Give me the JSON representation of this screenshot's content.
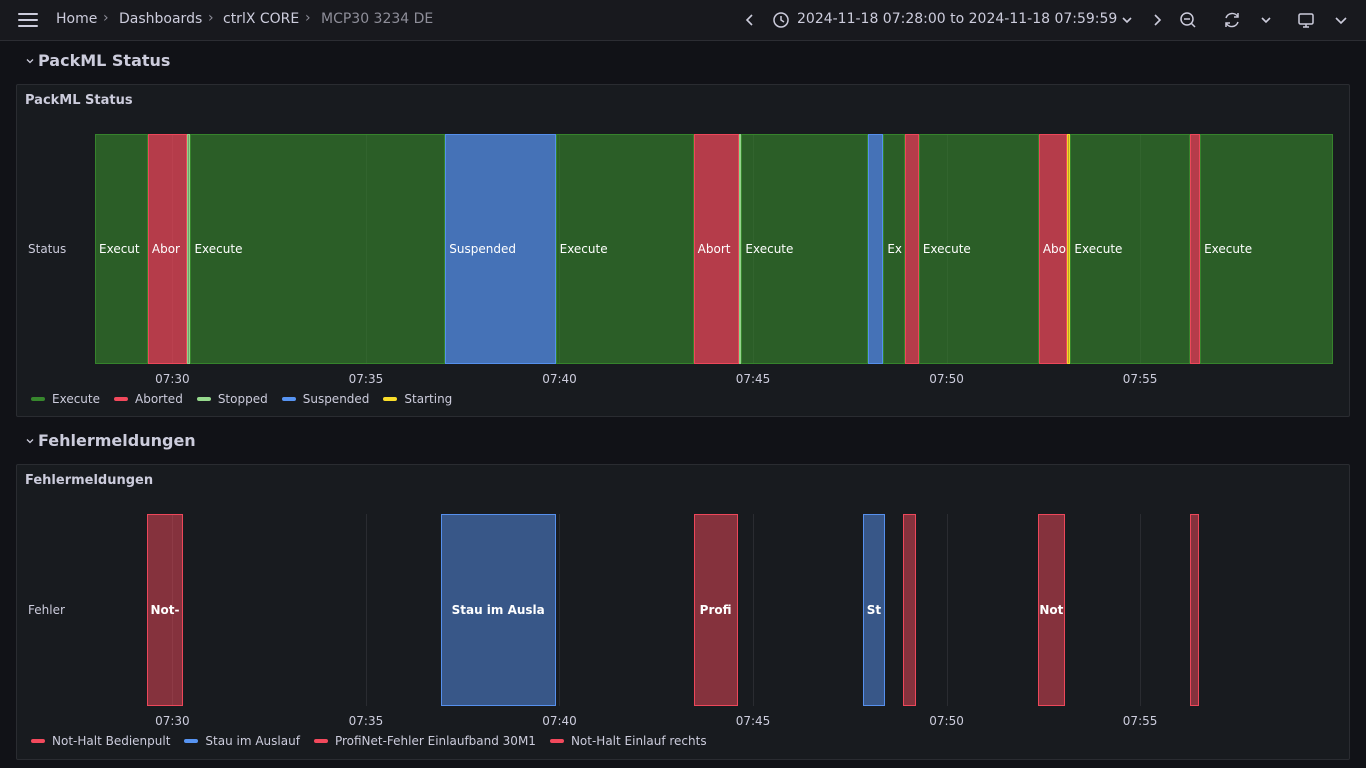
{
  "breadcrumb": {
    "items": [
      "Home",
      "Dashboards",
      "ctrlX CORE"
    ],
    "current": "MCP30 3234 DE"
  },
  "time_range": "2024-11-18 07:28:00 to 2024-11-18 07:59:59",
  "icons": [
    "menu-icon",
    "chevron-left-icon",
    "clock-icon",
    "chevron-down-icon",
    "chevron-right-icon",
    "zoom-out-icon",
    "refresh-icon",
    "chevron-down-icon",
    "tv-icon",
    "chevron-down-icon"
  ],
  "colors": {
    "execute": "#37872d",
    "aborted": "#f2495c",
    "stopped": "#96d98d",
    "suspended": "#5794f2",
    "starting": "#fade2a",
    "fault_red": "#f2495c",
    "fault_blue": "#5794f2"
  },
  "time_axis": {
    "start": "07:28:00",
    "end": "07:59:59",
    "ticks": [
      "07:30",
      "07:35",
      "07:40",
      "07:45",
      "07:50",
      "07:55"
    ]
  },
  "rows": [
    {
      "title": "PackML Status"
    },
    {
      "title": "Fehlermeldungen"
    }
  ],
  "panels": [
    {
      "title": "PackML Status",
      "ylabel": "Status",
      "legend": [
        {
          "name": "Execute",
          "color": "#37872d"
        },
        {
          "name": "Aborted",
          "color": "#f2495c"
        },
        {
          "name": "Stopped",
          "color": "#96d98d"
        },
        {
          "name": "Suspended",
          "color": "#5794f2"
        },
        {
          "name": "Starting",
          "color": "#fade2a"
        }
      ],
      "segments": [
        {
          "start": "07:28:00",
          "end": "07:29:22",
          "state": "execute",
          "label": "Execut"
        },
        {
          "start": "07:29:22",
          "end": "07:30:23",
          "state": "aborted",
          "label": "Abor"
        },
        {
          "start": "07:30:23",
          "end": "07:30:28",
          "state": "stopped",
          "label": ""
        },
        {
          "start": "07:30:28",
          "end": "07:37:03",
          "state": "execute",
          "label": "Execute"
        },
        {
          "start": "07:37:03",
          "end": "07:39:54",
          "state": "suspended",
          "label": "Suspended"
        },
        {
          "start": "07:39:54",
          "end": "07:43:28",
          "state": "execute",
          "label": "Execute"
        },
        {
          "start": "07:43:28",
          "end": "07:44:38",
          "state": "aborted",
          "label": "Abort"
        },
        {
          "start": "07:44:38",
          "end": "07:44:42",
          "state": "stopped",
          "label": ""
        },
        {
          "start": "07:44:42",
          "end": "07:47:58",
          "state": "execute",
          "label": "Execute"
        },
        {
          "start": "07:47:58",
          "end": "07:48:22",
          "state": "suspended",
          "label": ""
        },
        {
          "start": "07:48:22",
          "end": "07:48:55",
          "state": "execute",
          "label": "Ex"
        },
        {
          "start": "07:48:55",
          "end": "07:49:17",
          "state": "aborted",
          "label": ""
        },
        {
          "start": "07:49:17",
          "end": "07:52:23",
          "state": "execute",
          "label": "Execute"
        },
        {
          "start": "07:52:23",
          "end": "07:53:07",
          "state": "aborted",
          "label": "Abo"
        },
        {
          "start": "07:53:07",
          "end": "07:53:12",
          "state": "starting",
          "label": ""
        },
        {
          "start": "07:53:12",
          "end": "07:56:18",
          "state": "execute",
          "label": "Execute"
        },
        {
          "start": "07:56:18",
          "end": "07:56:33",
          "state": "aborted",
          "label": ""
        },
        {
          "start": "07:56:33",
          "end": "07:59:59",
          "state": "execute",
          "label": "Execute"
        }
      ]
    },
    {
      "title": "Fehlermeldungen",
      "ylabel": "Fehler",
      "legend": [
        {
          "name": "Not-Halt Bedienpult",
          "color": "#f2495c"
        },
        {
          "name": "Stau im Auslauf",
          "color": "#5794f2"
        },
        {
          "name": "ProfiNet-Fehler Einlaufband 30M1",
          "color": "#f2495c"
        },
        {
          "name": "Not-Halt Einlauf rechts",
          "color": "#f2495c"
        }
      ],
      "segments": [
        {
          "start": "07:29:20",
          "end": "07:30:17",
          "kind": "red",
          "label": "Not-"
        },
        {
          "start": "07:36:56",
          "end": "07:39:54",
          "kind": "blue",
          "label": "Stau im Ausla"
        },
        {
          "start": "07:43:28",
          "end": "07:44:36",
          "kind": "red",
          "label": "Profi"
        },
        {
          "start": "07:47:51",
          "end": "07:48:24",
          "kind": "blue",
          "label": "St"
        },
        {
          "start": "07:48:53",
          "end": "07:49:12",
          "kind": "red",
          "label": ""
        },
        {
          "start": "07:52:21",
          "end": "07:53:04",
          "kind": "red",
          "label": "Not"
        },
        {
          "start": "07:56:18",
          "end": "07:56:31",
          "kind": "red",
          "label": ""
        }
      ]
    }
  ]
}
